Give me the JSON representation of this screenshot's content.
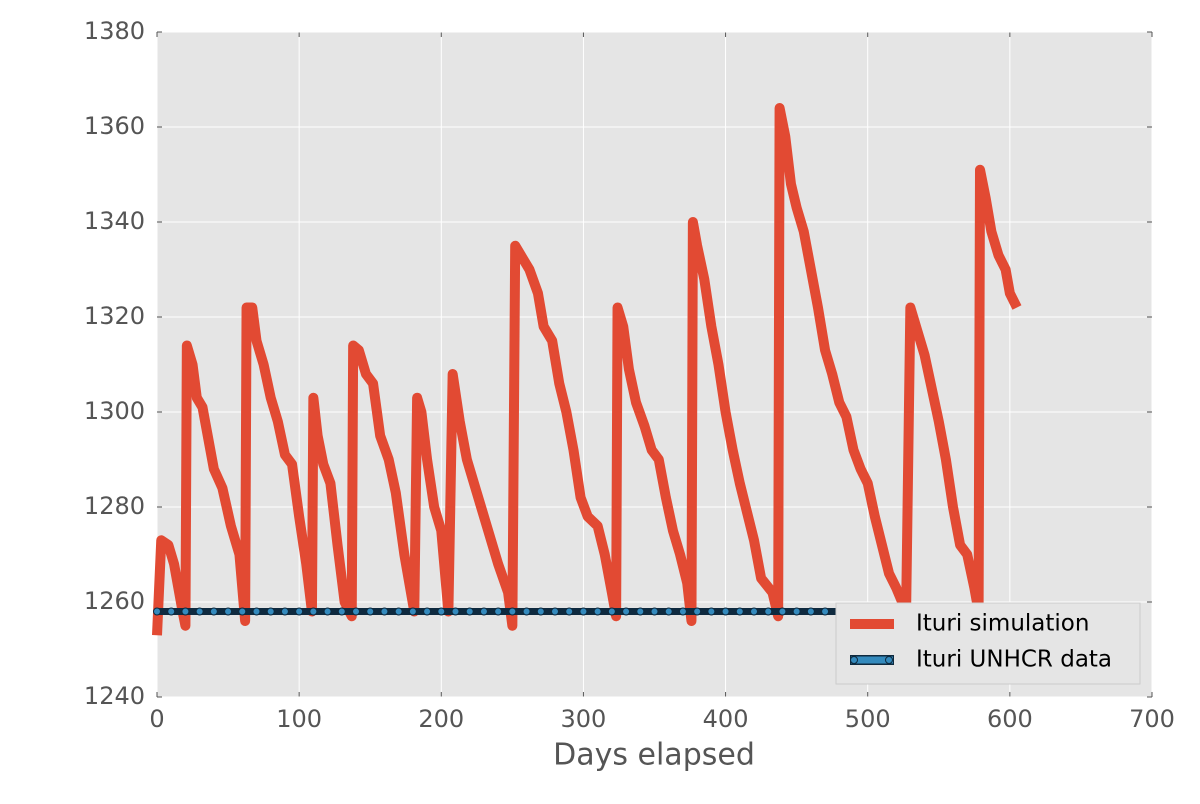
{
  "chart_data": {
    "type": "line",
    "xlabel": "Days elapsed",
    "xlim": [
      0,
      700
    ],
    "xticks": [
      0,
      100,
      200,
      300,
      400,
      500,
      600,
      700
    ],
    "ylim": [
      1240,
      1380
    ],
    "yticks": [
      1240,
      1260,
      1280,
      1300,
      1320,
      1340,
      1360,
      1380
    ],
    "grid": true,
    "legend": "lower right",
    "series": [
      {
        "name": "Ituri simulation",
        "color": "#e24a33",
        "x": [
          0,
          3,
          8,
          12,
          18,
          20,
          21,
          25,
          28,
          32,
          40,
          46,
          52,
          58,
          62,
          63,
          67,
          70,
          75,
          80,
          85,
          90,
          95,
          100,
          105,
          109,
          110,
          113,
          117,
          122,
          127,
          132,
          137,
          138,
          142,
          147,
          152,
          157,
          163,
          168,
          174,
          181,
          183,
          186,
          190,
          195,
          200,
          205,
          208,
          213,
          218,
          225,
          232,
          240,
          247,
          250,
          252,
          256,
          262,
          268,
          272,
          278,
          283,
          288,
          293,
          298,
          303,
          310,
          315,
          320,
          323,
          324,
          328,
          332,
          337,
          343,
          348,
          353,
          358,
          363,
          368,
          373,
          376,
          377,
          380,
          385,
          390,
          395,
          400,
          405,
          410,
          415,
          420,
          425,
          433,
          437,
          438,
          442,
          446,
          450,
          455,
          460,
          465,
          470,
          475,
          480,
          485,
          490,
          495,
          500,
          505,
          510,
          515,
          520,
          527,
          530,
          535,
          540,
          545,
          550,
          555,
          560,
          565,
          570,
          575,
          578,
          579,
          583,
          587,
          592,
          597,
          600,
          605
        ],
        "values": [
          1253,
          1273,
          1272,
          1268,
          1258,
          1255,
          1314,
          1310,
          1303,
          1301,
          1288,
          1284,
          1276,
          1270,
          1256,
          1322,
          1322,
          1315,
          1310,
          1303,
          1298,
          1291,
          1289,
          1278,
          1268,
          1258,
          1303,
          1295,
          1289,
          1285,
          1272,
          1260,
          1257,
          1314,
          1313,
          1308,
          1306,
          1295,
          1290,
          1283,
          1270,
          1258,
          1303,
          1300,
          1290,
          1280,
          1275,
          1258,
          1308,
          1298,
          1290,
          1283,
          1276,
          1268,
          1262,
          1255,
          1335,
          1333,
          1330,
          1325,
          1318,
          1315,
          1306,
          1300,
          1292,
          1282,
          1278,
          1276,
          1270,
          1262,
          1257,
          1322,
          1318,
          1309,
          1302,
          1297,
          1292,
          1290,
          1282,
          1275,
          1270,
          1264,
          1256,
          1340,
          1335,
          1328,
          1318,
          1310,
          1300,
          1292,
          1285,
          1279,
          1273,
          1265,
          1262,
          1257,
          1364,
          1358,
          1348,
          1343,
          1338,
          1330,
          1322,
          1313,
          1308,
          1302,
          1299,
          1292,
          1288,
          1285,
          1278,
          1272,
          1266,
          1263,
          1258,
          1322,
          1317,
          1312,
          1305,
          1298,
          1290,
          1280,
          1272,
          1270,
          1263,
          1258,
          1351,
          1345,
          1338,
          1333,
          1330,
          1325,
          1322
        ]
      },
      {
        "name": "Ituri UNHCR data",
        "color": "#348abd",
        "x": [
          0,
          10,
          20,
          30,
          40,
          50,
          60,
          70,
          80,
          90,
          100,
          110,
          120,
          130,
          140,
          150,
          160,
          170,
          180,
          190,
          200,
          210,
          220,
          230,
          240,
          250,
          260,
          270,
          280,
          290,
          300,
          310,
          320,
          330,
          340,
          350,
          360,
          370,
          380,
          390,
          400,
          410,
          420,
          430,
          440,
          450,
          460,
          470,
          480,
          490,
          500,
          510,
          520,
          530,
          540,
          550,
          560,
          570,
          580,
          590,
          600
        ],
        "values": [
          1258,
          1258,
          1258,
          1258,
          1258,
          1258,
          1258,
          1258,
          1258,
          1258,
          1258,
          1258,
          1258,
          1258,
          1258,
          1258,
          1258,
          1258,
          1258,
          1258,
          1258,
          1258,
          1258,
          1258,
          1258,
          1258,
          1258,
          1258,
          1258,
          1258,
          1258,
          1258,
          1258,
          1258,
          1258,
          1258,
          1258,
          1258,
          1258,
          1258,
          1258,
          1258,
          1258,
          1258,
          1258,
          1258,
          1258,
          1258,
          1258,
          1258,
          1258,
          1258,
          1258,
          1258,
          1258,
          1258,
          1258,
          1258,
          1258,
          1258,
          1258
        ]
      }
    ]
  }
}
